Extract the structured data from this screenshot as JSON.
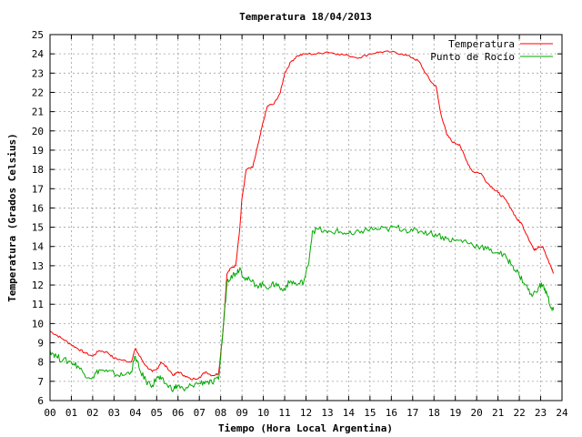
{
  "chart_data": {
    "type": "line",
    "title": "Temperatura 18/04/2013",
    "xlabel": "Tiempo (Hora Local Argentina)",
    "ylabel": "Temperatura (Grados Celsius)",
    "xlim": [
      0,
      24
    ],
    "ylim": [
      6,
      25
    ],
    "x_ticks": [
      "00",
      "01",
      "02",
      "03",
      "04",
      "05",
      "06",
      "07",
      "08",
      "09",
      "10",
      "11",
      "12",
      "13",
      "14",
      "15",
      "16",
      "17",
      "18",
      "19",
      "20",
      "21",
      "22",
      "23",
      "24"
    ],
    "y_ticks": [
      "6",
      "7",
      "8",
      "9",
      "10",
      "11",
      "12",
      "13",
      "14",
      "15",
      "16",
      "17",
      "18",
      "19",
      "20",
      "21",
      "22",
      "23",
      "24",
      "25"
    ],
    "grid": true,
    "legend_position": "top-right",
    "series": [
      {
        "name": "Temperatura",
        "color": "#ff0000",
        "x": [
          0,
          0.3,
          0.6,
          1.0,
          1.3,
          1.6,
          2.0,
          2.3,
          2.7,
          3.0,
          3.4,
          3.8,
          4.0,
          4.2,
          4.5,
          4.8,
          5.0,
          5.2,
          5.5,
          5.8,
          6.0,
          6.3,
          6.6,
          7.0,
          7.3,
          7.6,
          7.9,
          8.1,
          8.3,
          8.5,
          8.7,
          8.9,
          9.0,
          9.2,
          9.5,
          9.8,
          10.0,
          10.2,
          10.5,
          10.8,
          11.0,
          11.3,
          11.6,
          12.0,
          12.5,
          13.0,
          13.5,
          14.0,
          14.5,
          15.0,
          15.5,
          16.0,
          16.5,
          17.0,
          17.3,
          17.6,
          17.9,
          18.1,
          18.3,
          18.6,
          18.9,
          19.2,
          19.5,
          19.8,
          20.2,
          20.5,
          20.8,
          21.0,
          21.3,
          21.6,
          21.9,
          22.1,
          22.4,
          22.7,
          22.9,
          23.1,
          23.3,
          23.5,
          23.6
        ],
        "y": [
          9.6,
          9.4,
          9.2,
          8.9,
          8.7,
          8.5,
          8.3,
          8.6,
          8.5,
          8.2,
          8.1,
          8.0,
          8.7,
          8.3,
          7.8,
          7.5,
          7.6,
          8.0,
          7.7,
          7.3,
          7.5,
          7.3,
          7.1,
          7.2,
          7.5,
          7.3,
          7.4,
          9.5,
          12.6,
          12.9,
          13.0,
          15.0,
          16.5,
          18.0,
          18.1,
          19.5,
          20.5,
          21.3,
          21.4,
          22.0,
          23.0,
          23.6,
          23.9,
          24.0,
          24.0,
          24.1,
          24.0,
          23.9,
          23.8,
          24.0,
          24.1,
          24.1,
          24.0,
          23.8,
          23.6,
          23.0,
          22.5,
          22.3,
          21.0,
          19.8,
          19.4,
          19.3,
          18.5,
          17.9,
          17.8,
          17.3,
          17.0,
          16.8,
          16.5,
          16.0,
          15.4,
          15.2,
          14.5,
          13.8,
          14.0,
          14.0,
          13.4,
          12.9,
          12.6
        ]
      },
      {
        "name": "Punto de Rocío",
        "color": "#00aa00",
        "x": [
          0,
          0.3,
          0.6,
          1.0,
          1.3,
          1.6,
          2.0,
          2.3,
          2.7,
          3.0,
          3.4,
          3.8,
          4.0,
          4.2,
          4.5,
          4.8,
          5.0,
          5.2,
          5.5,
          5.8,
          6.0,
          6.3,
          6.6,
          7.0,
          7.3,
          7.6,
          7.9,
          8.1,
          8.3,
          8.5,
          8.7,
          8.9,
          9.1,
          9.4,
          9.7,
          10.0,
          10.3,
          10.6,
          10.9,
          11.1,
          11.3,
          11.6,
          11.9,
          12.1,
          12.3,
          12.6,
          13.0,
          13.4,
          13.8,
          14.2,
          14.6,
          15.0,
          15.4,
          15.8,
          16.2,
          16.6,
          17.0,
          17.4,
          17.8,
          18.2,
          18.6,
          19.0,
          19.4,
          19.8,
          20.2,
          20.6,
          21.0,
          21.4,
          21.7,
          22.0,
          22.3,
          22.6,
          22.9,
          23.1,
          23.3,
          23.5,
          23.6
        ],
        "y": [
          8.6,
          8.3,
          8.1,
          8.0,
          7.8,
          7.4,
          7.2,
          7.6,
          7.5,
          7.4,
          7.3,
          7.5,
          8.3,
          7.6,
          7.0,
          6.8,
          7.2,
          7.1,
          6.8,
          6.6,
          6.8,
          6.5,
          6.8,
          6.9,
          7.0,
          6.9,
          7.1,
          9.5,
          12.2,
          12.5,
          12.6,
          12.9,
          12.4,
          12.2,
          12.0,
          12.0,
          11.9,
          12.1,
          11.7,
          12.0,
          12.2,
          12.0,
          12.2,
          13.0,
          14.8,
          14.9,
          14.7,
          14.8,
          14.7,
          14.6,
          14.8,
          14.9,
          14.9,
          14.9,
          15.0,
          14.9,
          14.8,
          14.8,
          14.7,
          14.6,
          14.4,
          14.3,
          14.3,
          14.1,
          14.0,
          13.8,
          13.7,
          13.4,
          13.0,
          12.5,
          12.0,
          11.4,
          11.9,
          12.0,
          11.5,
          10.8,
          10.7
        ]
      }
    ]
  }
}
